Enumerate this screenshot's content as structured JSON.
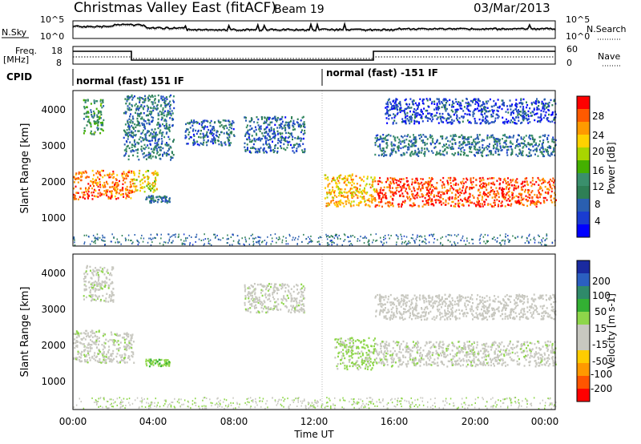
{
  "header": {
    "title": "Christmas Valley East (fitACF)",
    "beam": "Beam 19",
    "date": "03/Mar/2013"
  },
  "strips": {
    "nsky_label": "N.Sky",
    "nsearch_label": "N.Search",
    "noise_ticks": [
      "10^5",
      "10^0"
    ],
    "freq_label_1": "Freq.",
    "freq_label_2": "[MHz]",
    "freq_ticks": [
      "18",
      "8"
    ],
    "nave_label": "Nave",
    "nave_ticks": [
      "60",
      "0"
    ],
    "cpid_label": "CPID",
    "cpid_segments": [
      "normal (fast) 151 IF",
      "normal (fast) -151 IF"
    ]
  },
  "power_scale": {
    "title": "Power [dB]",
    "ticks": [
      "28",
      "24",
      "20",
      "16",
      "12",
      "8",
      "4"
    ],
    "colors": [
      "#ff0000",
      "#ff5a00",
      "#ff9a00",
      "#ffd200",
      "#a8d500",
      "#44b000",
      "#3a8f6c",
      "#2e7f55",
      "#2a5fb0",
      "#1a3cd0",
      "#0000ff"
    ]
  },
  "velocity_scale": {
    "title": "Velocity [m s-1]",
    "ticks": [
      "200",
      "100",
      "50",
      "15",
      "-15",
      "-50",
      "-100",
      "-200"
    ],
    "colors": [
      "#1a2aa0",
      "#2b5fc0",
      "#2f8a6a",
      "#33b033",
      "#8ed64a",
      "#c8c8c0",
      "#c8c8c0",
      "#ffcc00",
      "#ff9900",
      "#ff5500",
      "#ff0000"
    ]
  },
  "axes": {
    "y_label": "Slant Range [km]",
    "x_label": "Time UT",
    "y_ticks": [
      "4000",
      "3000",
      "2000",
      "1000"
    ],
    "x_ticks": [
      "00:00",
      "04:00",
      "08:00",
      "12:00",
      "16:00",
      "20:00",
      "00:00"
    ]
  },
  "chart_data": [
    {
      "type": "heatmap",
      "title": "Power [dB]",
      "xlabel": "Time UT",
      "ylabel": "Slant Range [km]",
      "xlim": [
        0,
        24
      ],
      "ylim": [
        180,
        4500
      ],
      "zlim": [
        0,
        30
      ],
      "bands": [
        {
          "t": [
            0.0,
            3.0
          ],
          "range_km": [
            1500,
            2300
          ],
          "power_db": 26
        },
        {
          "t": [
            0.5,
            1.5
          ],
          "range_km": [
            3300,
            4300
          ],
          "power_db": 12
        },
        {
          "t": [
            3.0,
            4.2
          ],
          "range_km": [
            1700,
            2300
          ],
          "power_db": 20
        },
        {
          "t": [
            3.6,
            4.8
          ],
          "range_km": [
            1400,
            1600
          ],
          "power_db": 8
        },
        {
          "t": [
            2.5,
            5.0
          ],
          "range_km": [
            2600,
            4400
          ],
          "power_db": 8
        },
        {
          "t": [
            5.5,
            8.0
          ],
          "range_km": [
            3000,
            3700
          ],
          "power_db": 6
        },
        {
          "t": [
            8.5,
            11.5
          ],
          "range_km": [
            2800,
            3800
          ],
          "power_db": 6
        },
        {
          "t": [
            12.5,
            15.0
          ],
          "range_km": [
            1300,
            2200
          ],
          "power_db": 22
        },
        {
          "t": [
            15.0,
            24.0
          ],
          "range_km": [
            1300,
            2100
          ],
          "power_db": 28
        },
        {
          "t": [
            15.0,
            24.0
          ],
          "range_km": [
            2700,
            3300
          ],
          "power_db": 8
        },
        {
          "t": [
            15.5,
            24.0
          ],
          "range_km": [
            3600,
            4300
          ],
          "power_db": 4
        }
      ]
    },
    {
      "type": "heatmap",
      "title": "Velocity [m s-1]",
      "xlabel": "Time UT",
      "ylabel": "Slant Range [km]",
      "xlim": [
        0,
        24
      ],
      "ylim": [
        180,
        4500
      ],
      "zlim": [
        -200,
        200
      ],
      "bands": [
        {
          "t": [
            0.0,
            3.0
          ],
          "range_km": [
            1500,
            2400
          ],
          "velocity": 0
        },
        {
          "t": [
            0.5,
            2.0
          ],
          "range_km": [
            3200,
            4200
          ],
          "velocity": 0
        },
        {
          "t": [
            3.6,
            4.8
          ],
          "range_km": [
            1400,
            1600
          ],
          "velocity": 50
        },
        {
          "t": [
            8.5,
            11.5
          ],
          "range_km": [
            2900,
            3700
          ],
          "velocity": 0
        },
        {
          "t": [
            13.0,
            15.0
          ],
          "range_km": [
            1300,
            2200
          ],
          "velocity": 30
        },
        {
          "t": [
            15.0,
            24.0
          ],
          "range_km": [
            1400,
            2100
          ],
          "velocity": 0
        },
        {
          "t": [
            15.0,
            24.0
          ],
          "range_km": [
            2700,
            3400
          ],
          "velocity": -30
        }
      ]
    }
  ]
}
